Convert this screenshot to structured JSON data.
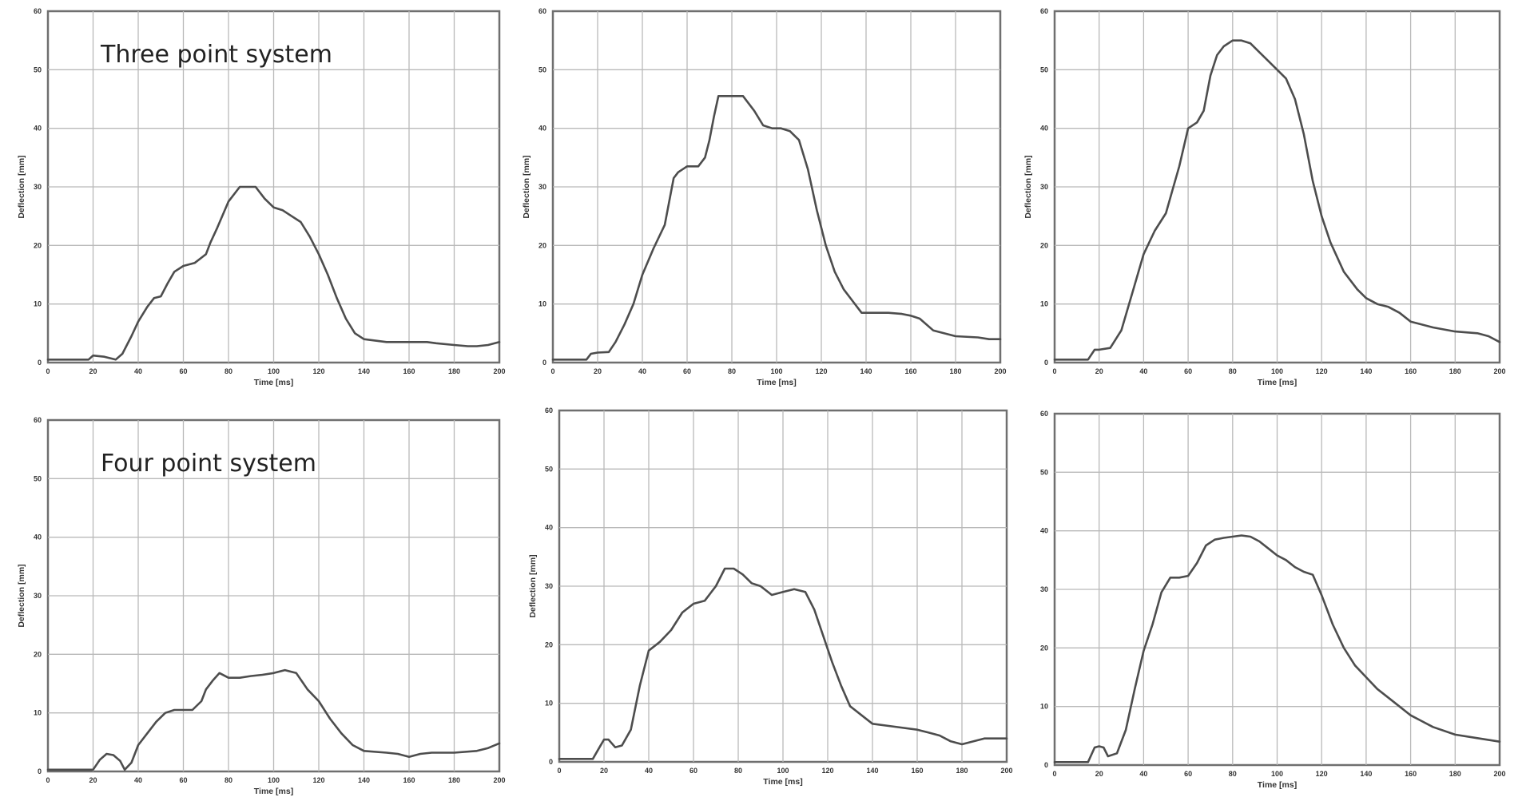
{
  "chart_data": [
    {
      "type": "line",
      "annotation": "Three point system",
      "xlabel": "Time [ms]",
      "ylabel": "Deflection [mm]",
      "xlim": [
        0,
        200
      ],
      "ylim": [
        0,
        60
      ],
      "xticks": [
        0,
        20,
        40,
        60,
        80,
        100,
        120,
        140,
        160,
        180,
        200
      ],
      "yticks": [
        0,
        10,
        20,
        30,
        40,
        50,
        60
      ],
      "grid": true,
      "x": [
        0,
        18,
        20,
        25,
        30,
        33,
        37,
        40,
        44,
        47,
        50,
        53,
        56,
        60,
        65,
        70,
        72,
        75,
        80,
        85,
        90,
        92,
        96,
        100,
        104,
        108,
        112,
        116,
        120,
        124,
        128,
        132,
        136,
        140,
        150,
        160,
        168,
        172,
        180,
        186,
        190,
        195,
        200
      ],
      "y": [
        0.5,
        0.5,
        1.2,
        1.0,
        0.5,
        1.5,
        4.5,
        7.0,
        9.5,
        11,
        11.3,
        13.5,
        15.5,
        16.5,
        17,
        18.5,
        20.5,
        23,
        27.5,
        30,
        30,
        30,
        28,
        26.5,
        26,
        25,
        24,
        21.5,
        18.5,
        15,
        11,
        7.5,
        5,
        4,
        3.5,
        3.5,
        3.5,
        3.3,
        3,
        2.8,
        2.8,
        3,
        3.5
      ]
    },
    {
      "type": "line",
      "xlabel": "Time [ms]",
      "ylabel": "Deflection [mm]",
      "xlim": [
        0,
        200
      ],
      "ylim": [
        0,
        60
      ],
      "xticks": [
        0,
        20,
        40,
        60,
        80,
        100,
        120,
        140,
        160,
        180,
        200
      ],
      "yticks": [
        0,
        10,
        20,
        30,
        40,
        50,
        60
      ],
      "grid": true,
      "x": [
        0,
        15,
        17,
        20,
        25,
        28,
        32,
        36,
        40,
        45,
        50,
        54,
        56,
        60,
        65,
        68,
        70,
        72,
        74,
        76,
        80,
        85,
        90,
        94,
        98,
        102,
        106,
        110,
        114,
        118,
        122,
        126,
        130,
        134,
        138,
        142,
        150,
        156,
        160,
        164,
        170,
        180,
        190,
        195,
        200
      ],
      "y": [
        0.5,
        0.5,
        1.5,
        1.7,
        1.8,
        3.5,
        6.5,
        10,
        15,
        19.5,
        23.5,
        31.5,
        32.5,
        33.5,
        33.5,
        35,
        38,
        42,
        45.5,
        45.5,
        45.5,
        45.5,
        43,
        40.5,
        40,
        40,
        39.5,
        38,
        33,
        26,
        20,
        15.5,
        12.5,
        10.5,
        8.5,
        8.5,
        8.5,
        8.3,
        8,
        7.5,
        5.5,
        4.5,
        4.3,
        4,
        4
      ]
    },
    {
      "type": "line",
      "xlabel": "Time [ms]",
      "ylabel": "Deflection [mm]",
      "xlim": [
        0,
        200
      ],
      "ylim": [
        0,
        60
      ],
      "xticks": [
        0,
        20,
        40,
        60,
        80,
        100,
        120,
        140,
        160,
        180,
        200
      ],
      "yticks": [
        0,
        10,
        20,
        30,
        40,
        50,
        60
      ],
      "grid": true,
      "x": [
        0,
        15,
        18,
        20,
        25,
        30,
        35,
        40,
        45,
        50,
        53,
        56,
        60,
        64,
        67,
        70,
        73,
        76,
        80,
        84,
        88,
        92,
        96,
        100,
        104,
        108,
        112,
        116,
        120,
        124,
        130,
        136,
        140,
        145,
        150,
        155,
        160,
        170,
        180,
        190,
        195,
        200
      ],
      "y": [
        0.5,
        0.5,
        2.2,
        2.2,
        2.5,
        5.5,
        12,
        18.5,
        22.5,
        25.5,
        29.5,
        33.5,
        40,
        41,
        43,
        49,
        52.5,
        54,
        55,
        55,
        54.5,
        53,
        51.5,
        50,
        48.5,
        45,
        39,
        31,
        25,
        20.5,
        15.5,
        12.5,
        11,
        10,
        9.5,
        8.5,
        7,
        6,
        5.3,
        5,
        4.5,
        3.5
      ]
    },
    {
      "type": "line",
      "annotation": "Four point system",
      "xlabel": "Time [ms]",
      "ylabel": "Deflection [mm]",
      "xlim": [
        0,
        200
      ],
      "ylim": [
        0,
        60
      ],
      "xticks": [
        0,
        20,
        40,
        60,
        80,
        100,
        120,
        140,
        160,
        180,
        200
      ],
      "yticks": [
        0,
        10,
        20,
        30,
        40,
        50,
        60
      ],
      "grid": true,
      "x": [
        0,
        20,
        23,
        26,
        29,
        32,
        34,
        37,
        40,
        44,
        48,
        52,
        56,
        60,
        64,
        68,
        70,
        73,
        76,
        80,
        85,
        90,
        95,
        100,
        105,
        110,
        115,
        120,
        125,
        130,
        135,
        140,
        150,
        155,
        160,
        165,
        170,
        180,
        190,
        195,
        200
      ],
      "y": [
        0.3,
        0.3,
        2.0,
        3.0,
        2.8,
        1.8,
        0.3,
        1.5,
        4.5,
        6.5,
        8.5,
        10,
        10.5,
        10.5,
        10.5,
        12,
        14,
        15.5,
        16.8,
        16,
        16,
        16.3,
        16.5,
        16.8,
        17.3,
        16.8,
        14,
        12,
        9,
        6.5,
        4.5,
        3.5,
        3.2,
        3,
        2.5,
        3,
        3.2,
        3.2,
        3.5,
        4,
        4.8
      ]
    },
    {
      "type": "line",
      "xlabel": "Time [ms]",
      "ylabel": "Deflection [mm]",
      "xlim": [
        0,
        200
      ],
      "ylim": [
        0,
        60
      ],
      "xticks": [
        0,
        20,
        40,
        60,
        80,
        100,
        120,
        140,
        160,
        180,
        200
      ],
      "yticks": [
        0,
        10,
        20,
        30,
        40,
        50,
        60
      ],
      "grid": true,
      "x": [
        0,
        15,
        18,
        20,
        22,
        25,
        28,
        32,
        36,
        40,
        45,
        50,
        55,
        60,
        65,
        70,
        74,
        78,
        82,
        86,
        90,
        95,
        100,
        105,
        110,
        114,
        118,
        122,
        126,
        130,
        135,
        140,
        150,
        160,
        165,
        170,
        175,
        180,
        190,
        200
      ],
      "y": [
        0.5,
        0.5,
        2.5,
        3.8,
        3.8,
        2.5,
        2.8,
        5.5,
        13,
        19,
        20.5,
        22.5,
        25.5,
        27,
        27.5,
        30,
        33,
        33,
        32,
        30.5,
        30,
        28.5,
        29,
        29.5,
        29,
        26,
        21.5,
        17,
        13,
        9.5,
        8,
        6.5,
        6,
        5.5,
        5,
        4.5,
        3.5,
        3,
        4,
        4
      ]
    },
    {
      "type": "line",
      "xlabel": "Time [ms]",
      "ylabel": "",
      "xlim": [
        0,
        200
      ],
      "ylim": [
        0,
        60
      ],
      "xticks": [
        0,
        20,
        40,
        60,
        80,
        100,
        120,
        140,
        160,
        180,
        200
      ],
      "yticks": [
        0,
        10,
        20,
        30,
        40,
        50,
        60
      ],
      "grid": true,
      "x": [
        0,
        15,
        18,
        20,
        22,
        24,
        28,
        32,
        36,
        40,
        44,
        48,
        52,
        56,
        60,
        64,
        68,
        72,
        76,
        80,
        84,
        88,
        92,
        96,
        100,
        104,
        108,
        112,
        116,
        120,
        125,
        130,
        135,
        140,
        145,
        150,
        155,
        160,
        170,
        180,
        190,
        200
      ],
      "y": [
        0.5,
        0.5,
        3.0,
        3.2,
        3.0,
        1.5,
        2.0,
        6.0,
        13,
        19.5,
        24,
        29.5,
        32,
        32,
        32.3,
        34.5,
        37.5,
        38.5,
        38.8,
        39,
        39.2,
        39,
        38.2,
        37,
        35.8,
        35,
        33.8,
        33,
        32.5,
        29,
        24,
        20,
        17,
        15,
        13,
        11.5,
        10,
        8.5,
        6.5,
        5.2,
        4.6,
        4
      ]
    }
  ]
}
